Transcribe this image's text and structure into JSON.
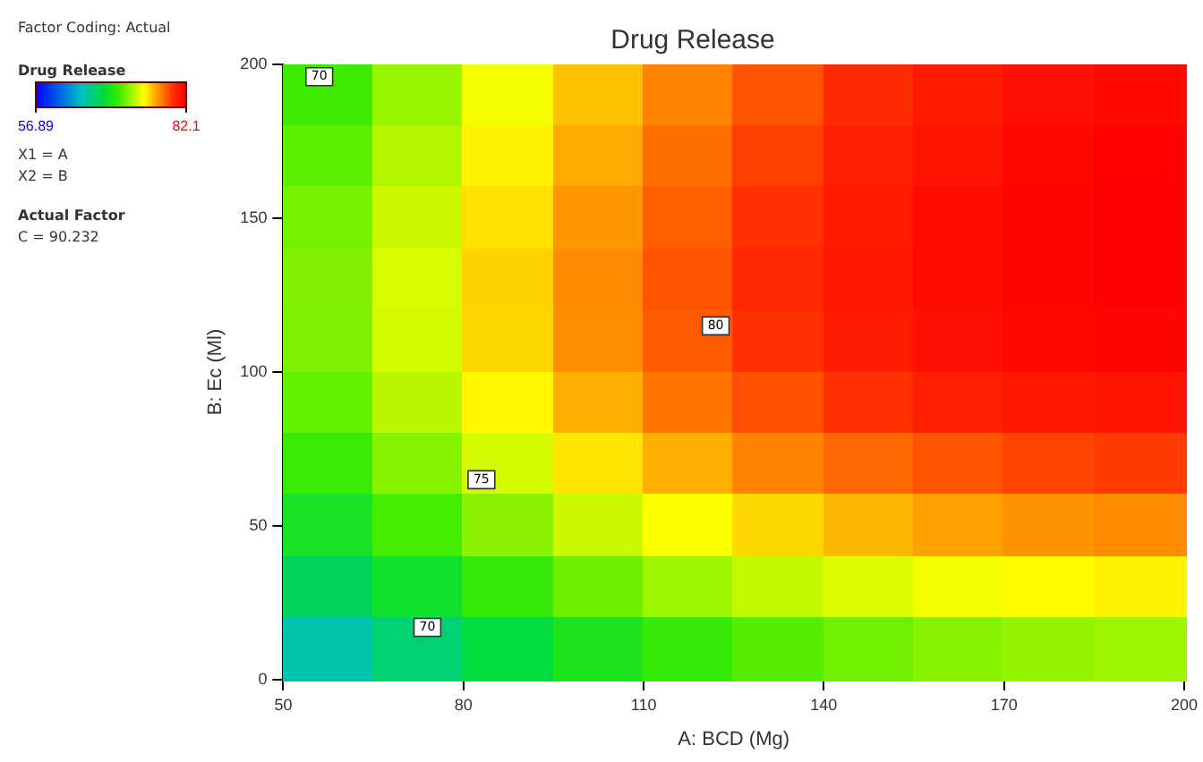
{
  "chart_data": {
    "type": "heatmap",
    "title": "Drug Release",
    "xlabel": "A: BCD (Mg)",
    "ylabel": "B: Ec (Ml)",
    "clabel": "Drug Release",
    "x": [
      57.5,
      72.5,
      87.5,
      102.5,
      117.5,
      132.5,
      147.5,
      162.5,
      177.5,
      192.5
    ],
    "y": [
      190,
      170,
      150,
      130,
      110,
      90,
      70,
      50,
      30,
      10
    ],
    "cells": [
      [
        70.8,
        72.8,
        74.8,
        76.4,
        77.8,
        79.0,
        80.0,
        80.8,
        81.3,
        81.6
      ],
      [
        71.5,
        73.4,
        75.3,
        76.9,
        78.3,
        79.5,
        80.5,
        81.2,
        81.7,
        82.0
      ],
      [
        72.0,
        73.9,
        75.7,
        77.3,
        78.7,
        79.9,
        80.8,
        81.5,
        81.9,
        82.1
      ],
      [
        72.3,
        74.2,
        76.0,
        77.6,
        79.0,
        80.1,
        80.9,
        81.5,
        81.9,
        82.1
      ],
      [
        72.2,
        74.1,
        75.9,
        77.5,
        78.8,
        79.9,
        80.7,
        81.3,
        81.7,
        81.9
      ],
      [
        71.6,
        73.5,
        75.2,
        76.8,
        78.1,
        79.1,
        79.9,
        80.5,
        80.9,
        81.1
      ],
      [
        70.6,
        72.4,
        74.1,
        75.6,
        76.8,
        77.8,
        78.5,
        79.0,
        79.4,
        79.6
      ],
      [
        69.2,
        70.9,
        72.5,
        73.9,
        75.0,
        75.9,
        76.6,
        77.1,
        77.4,
        77.6
      ],
      [
        67.4,
        69.0,
        70.5,
        71.8,
        72.9,
        73.7,
        74.3,
        74.8,
        75.1,
        75.3
      ],
      [
        65.2,
        66.8,
        68.2,
        69.5,
        70.5,
        71.3,
        71.9,
        72.4,
        72.7,
        72.9
      ]
    ],
    "clim": [
      56.89,
      82.1
    ],
    "cticks": [
      56.89,
      82.1
    ],
    "xlim": [
      50,
      200
    ],
    "xticks": [
      50,
      80,
      110,
      140,
      170,
      200
    ],
    "ylim": [
      0,
      200
    ],
    "yticks": [
      0,
      50,
      100,
      150,
      200
    ],
    "grid": false,
    "annotations": [
      "Factor Coding: Actual",
      "X1 = A",
      "X2 = B",
      "Actual Factor",
      "C = 90.232",
      {
        "text": "70",
        "x": 56,
        "y": 196
      },
      {
        "text": "70",
        "x": 74,
        "y": 17
      },
      {
        "text": "75",
        "x": 83,
        "y": 65
      },
      {
        "text": "80",
        "x": 122,
        "y": 115
      }
    ]
  }
}
